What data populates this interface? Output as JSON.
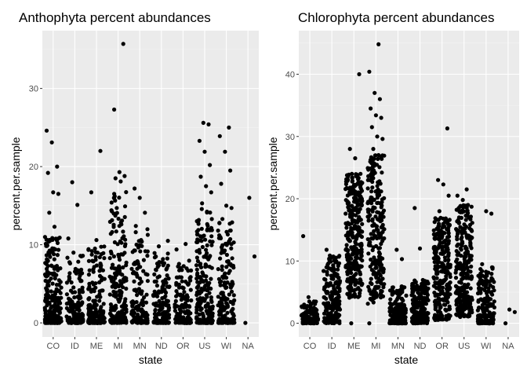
{
  "charts": [
    {
      "type": "scatter",
      "title": "Anthophyta percent abundances",
      "xlabel": "state",
      "ylabel": "percent.per.sample",
      "categories": [
        "CO",
        "ID",
        "ME",
        "MI",
        "MN",
        "ND",
        "OR",
        "US",
        "WI",
        "NA"
      ],
      "ylim": [
        -1.8,
        37.4
      ],
      "yticks": [
        0,
        10,
        20,
        30
      ],
      "grid": true,
      "legend": "none",
      "point_color": "#000000",
      "background": "#ebebeb",
      "jitter_points": [
        {
          "x": "CO",
          "y": 24.6
        },
        {
          "x": "CO",
          "y": 23.1
        },
        {
          "x": "CO",
          "y": 20.0
        },
        {
          "x": "CO",
          "y": 19.2
        },
        {
          "x": "CO",
          "y": 16.7
        },
        {
          "x": "CO",
          "y": 16.5
        },
        {
          "x": "CO",
          "y": 14.1
        },
        {
          "x": "CO",
          "y": 12.3
        },
        {
          "x": "CO",
          "y": 10.9
        },
        {
          "x": "ID",
          "y": 18.0
        },
        {
          "x": "ID",
          "y": 15.1
        },
        {
          "x": "ID",
          "y": 10.8
        },
        {
          "x": "ID",
          "y": 9.0
        },
        {
          "x": "ME",
          "y": 22.0
        },
        {
          "x": "ME",
          "y": 16.7
        },
        {
          "x": "ME",
          "y": 10.6
        },
        {
          "x": "MI",
          "y": 35.7
        },
        {
          "x": "MI",
          "y": 27.3
        },
        {
          "x": "MI",
          "y": 19.3
        },
        {
          "x": "MI",
          "y": 18.8
        },
        {
          "x": "MI",
          "y": 18.5
        },
        {
          "x": "MI",
          "y": 18.1
        },
        {
          "x": "MI",
          "y": 15.4
        },
        {
          "x": "MI",
          "y": 14.7
        },
        {
          "x": "MI",
          "y": 13.1
        },
        {
          "x": "MN",
          "y": 17.2
        },
        {
          "x": "MN",
          "y": 16.0
        },
        {
          "x": "MN",
          "y": 14.1
        },
        {
          "x": "MN",
          "y": 12.4
        },
        {
          "x": "MN",
          "y": 10.6
        },
        {
          "x": "ND",
          "y": 10.5
        },
        {
          "x": "ND",
          "y": 9.8
        },
        {
          "x": "OR",
          "y": 10.1
        },
        {
          "x": "OR",
          "y": 9.4
        },
        {
          "x": "US",
          "y": 25.6
        },
        {
          "x": "US",
          "y": 25.4
        },
        {
          "x": "US",
          "y": 23.3
        },
        {
          "x": "US",
          "y": 21.9
        },
        {
          "x": "US",
          "y": 20.2
        },
        {
          "x": "US",
          "y": 18.7
        },
        {
          "x": "US",
          "y": 17.5
        },
        {
          "x": "US",
          "y": 16.7
        },
        {
          "x": "US",
          "y": 15.3
        },
        {
          "x": "WI",
          "y": 25.0
        },
        {
          "x": "WI",
          "y": 23.9
        },
        {
          "x": "WI",
          "y": 21.9
        },
        {
          "x": "WI",
          "y": 19.5
        },
        {
          "x": "WI",
          "y": 17.8
        },
        {
          "x": "WI",
          "y": 15.0
        },
        {
          "x": "WI",
          "y": 14.7
        },
        {
          "x": "WI",
          "y": 13.3
        },
        {
          "x": "NA",
          "y": 16.0
        },
        {
          "x": "NA",
          "y": 8.5
        },
        {
          "x": "NA",
          "y": 0.0
        }
      ],
      "bulk": [
        {
          "x": "CO",
          "n": 260,
          "max": 11,
          "shape": 3.2,
          "spread": 0.38
        },
        {
          "x": "ID",
          "n": 150,
          "max": 9,
          "shape": 3.0,
          "spread": 0.38
        },
        {
          "x": "ME",
          "n": 190,
          "max": 10,
          "shape": 3.0,
          "spread": 0.38
        },
        {
          "x": "MI",
          "n": 200,
          "max": 17,
          "shape": 2.3,
          "spread": 0.38
        },
        {
          "x": "MN",
          "n": 150,
          "max": 12,
          "shape": 2.2,
          "spread": 0.38
        },
        {
          "x": "ND",
          "n": 150,
          "max": 9,
          "shape": 2.6,
          "spread": 0.38
        },
        {
          "x": "OR",
          "n": 150,
          "max": 8,
          "shape": 2.6,
          "spread": 0.38
        },
        {
          "x": "US",
          "n": 230,
          "max": 15,
          "shape": 2.4,
          "spread": 0.38
        },
        {
          "x": "WI",
          "n": 180,
          "max": 13,
          "shape": 2.5,
          "spread": 0.38
        }
      ]
    },
    {
      "type": "scatter",
      "title": "Chlorophyta percent abundances",
      "xlabel": "state",
      "ylabel": "percent.per.sample",
      "categories": [
        "CO",
        "ID",
        "ME",
        "MI",
        "MN",
        "ND",
        "OR",
        "US",
        "WI",
        "NA"
      ],
      "ylim": [
        -2.2,
        47.0
      ],
      "yticks": [
        0,
        10,
        20,
        30,
        40
      ],
      "grid": true,
      "legend": "none",
      "point_color": "#000000",
      "background": "#ebebeb",
      "jitter_points": [
        {
          "x": "CO",
          "y": 14.0
        },
        {
          "x": "CO",
          "y": 4.2
        },
        {
          "x": "CO",
          "y": 2.5
        },
        {
          "x": "ID",
          "y": 11.8
        },
        {
          "x": "ID",
          "y": 5.0
        },
        {
          "x": "ME",
          "y": 40.0
        },
        {
          "x": "ME",
          "y": 28.0
        },
        {
          "x": "ME",
          "y": 26.5
        },
        {
          "x": "ME",
          "y": 24.0
        },
        {
          "x": "ME",
          "y": 0.0
        },
        {
          "x": "MI",
          "y": 44.8
        },
        {
          "x": "MI",
          "y": 40.4
        },
        {
          "x": "MI",
          "y": 37.0
        },
        {
          "x": "MI",
          "y": 36.0
        },
        {
          "x": "MI",
          "y": 34.5
        },
        {
          "x": "MI",
          "y": 33.4
        },
        {
          "x": "MI",
          "y": 33.0
        },
        {
          "x": "MI",
          "y": 31.5
        },
        {
          "x": "MI",
          "y": 30.0
        },
        {
          "x": "MI",
          "y": 29.6
        },
        {
          "x": "MI",
          "y": 28.0
        },
        {
          "x": "MI",
          "y": 27.0
        },
        {
          "x": "MI",
          "y": 0.0
        },
        {
          "x": "MN",
          "y": 11.8
        },
        {
          "x": "MN",
          "y": 10.3
        },
        {
          "x": "ND",
          "y": 18.5
        },
        {
          "x": "ND",
          "y": 12.0
        },
        {
          "x": "OR",
          "y": 31.3
        },
        {
          "x": "OR",
          "y": 23.0
        },
        {
          "x": "OR",
          "y": 22.3
        },
        {
          "x": "OR",
          "y": 20.5
        },
        {
          "x": "OR",
          "y": 18.0
        },
        {
          "x": "US",
          "y": 21.5
        },
        {
          "x": "US",
          "y": 20.5
        },
        {
          "x": "US",
          "y": 19.8
        },
        {
          "x": "US",
          "y": 19.0
        },
        {
          "x": "US",
          "y": 18.5
        },
        {
          "x": "WI",
          "y": 18.0
        },
        {
          "x": "WI",
          "y": 17.6
        },
        {
          "x": "WI",
          "y": 9.5
        },
        {
          "x": "NA",
          "y": 2.2
        },
        {
          "x": "NA",
          "y": 1.8
        },
        {
          "x": "NA",
          "y": 0.0
        }
      ],
      "bulk": [
        {
          "x": "CO",
          "n": 120,
          "max": 3.5,
          "shape": 2.5,
          "spread": 0.38
        },
        {
          "x": "ID",
          "n": 180,
          "max": 11,
          "shape": 1.3,
          "spread": 0.38
        },
        {
          "x": "ME",
          "n": 320,
          "min": 4,
          "max": 24,
          "shape": 1.0,
          "spread": 0.38
        },
        {
          "x": "MI",
          "n": 240,
          "min": 3,
          "max": 27,
          "shape": 1.0,
          "spread": 0.38
        },
        {
          "x": "MN",
          "n": 170,
          "max": 6,
          "shape": 2.4,
          "spread": 0.38
        },
        {
          "x": "ND",
          "n": 220,
          "max": 7,
          "shape": 1.8,
          "spread": 0.38
        },
        {
          "x": "OR",
          "n": 260,
          "min": 0.5,
          "max": 17,
          "shape": 1.1,
          "spread": 0.38
        },
        {
          "x": "US",
          "n": 260,
          "min": 1,
          "max": 19,
          "shape": 1.1,
          "spread": 0.38
        },
        {
          "x": "WI",
          "n": 180,
          "max": 9,
          "shape": 2.2,
          "spread": 0.38
        }
      ]
    }
  ]
}
